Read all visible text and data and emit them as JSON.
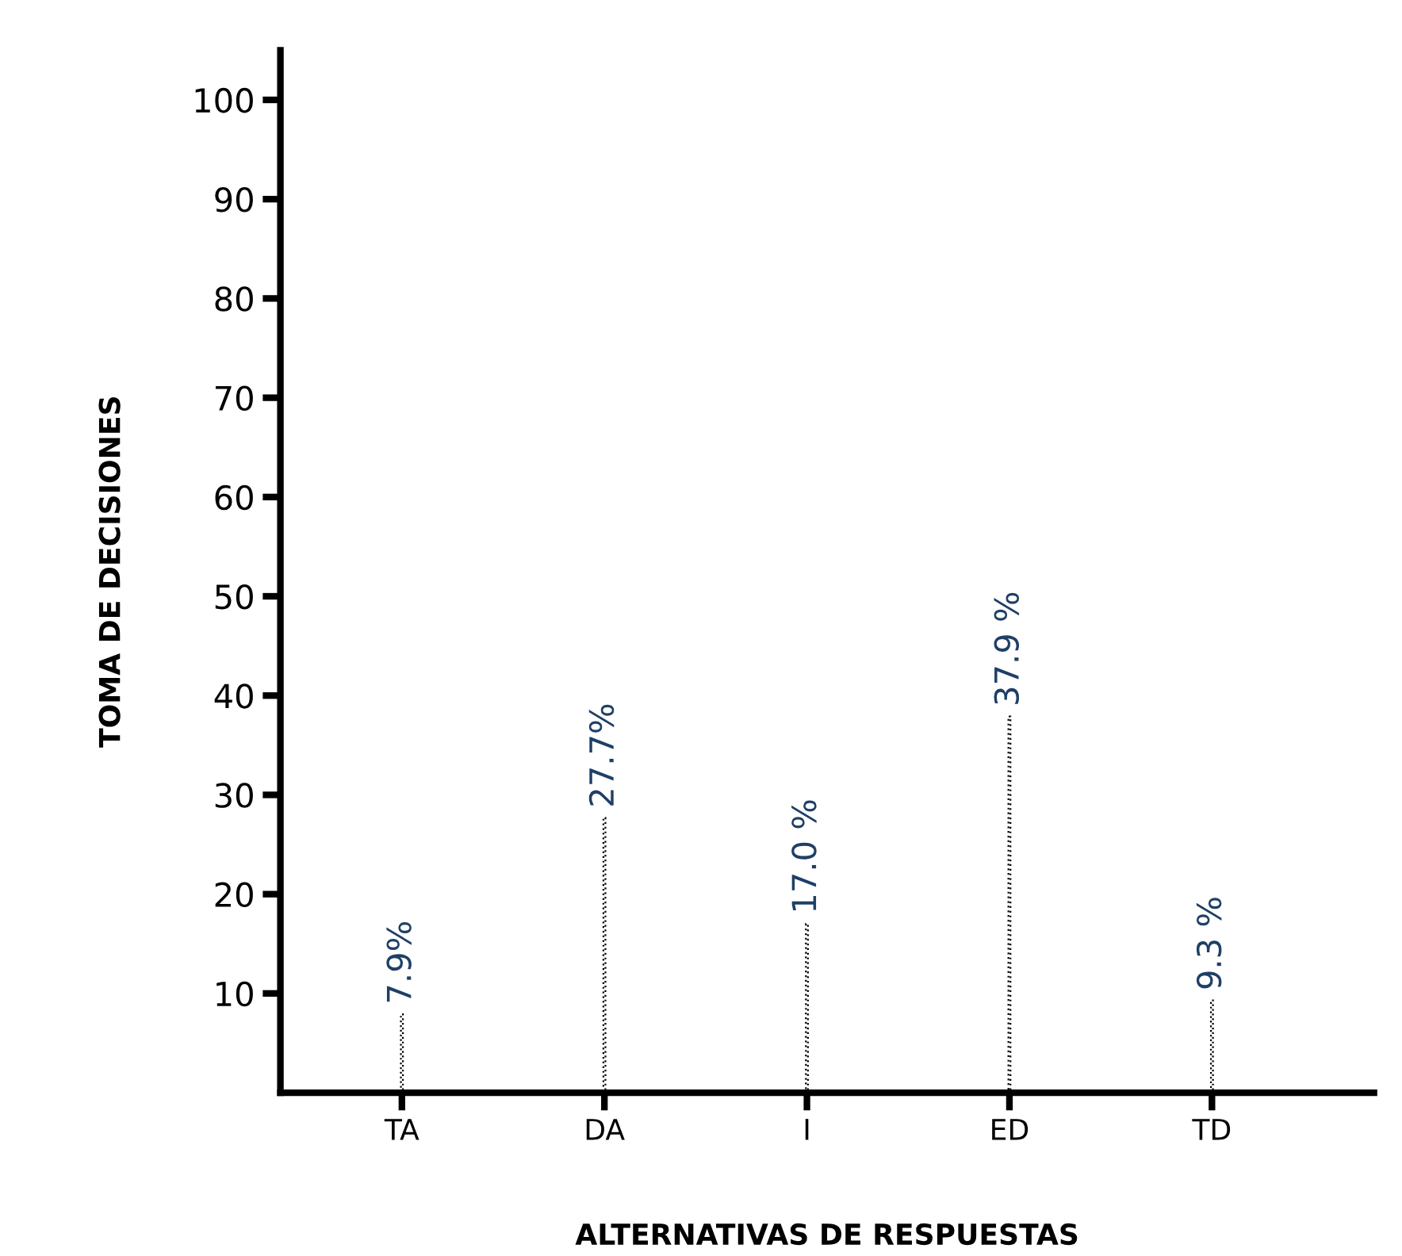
{
  "chart_data": {
    "type": "bar",
    "xlabel": "ALTERNATIVAS DE RESPUESTAS",
    "ylabel": "TOMA DE DECISIONES",
    "categories": [
      "TA",
      "DA",
      "I",
      "ED",
      "TD"
    ],
    "values": [
      7.9,
      27.7,
      17.0,
      37.9,
      9.3
    ],
    "value_labels": [
      "7.9%",
      "27.7%",
      "17.0 %",
      "37.9 %",
      "9.3 %"
    ],
    "color": "#000000",
    "line_style": "dotted",
    "ylim": [
      0,
      105
    ],
    "yticks": [
      10,
      20,
      30,
      40,
      50,
      60,
      70,
      80,
      90,
      100
    ],
    "grid": false,
    "legend": false
  }
}
